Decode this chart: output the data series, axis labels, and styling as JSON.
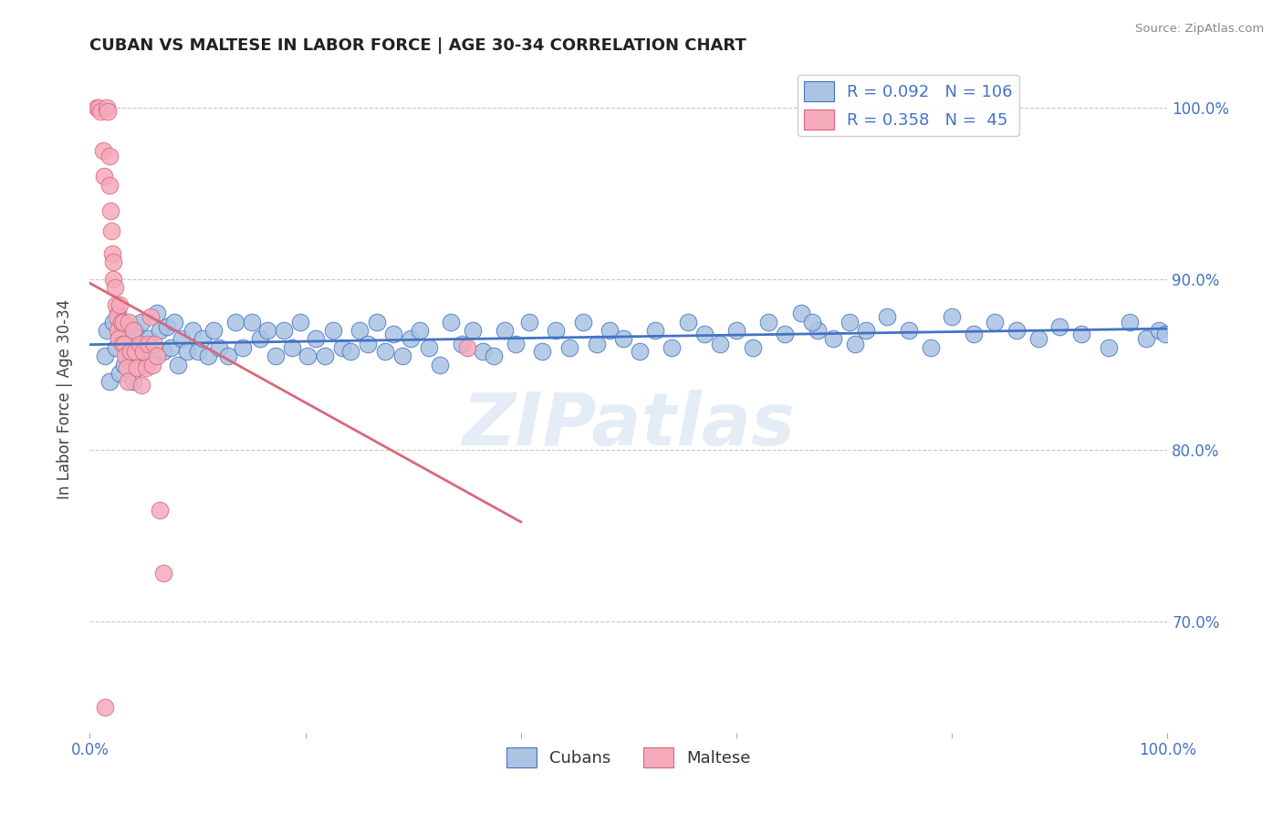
{
  "title": "CUBAN VS MALTESE IN LABOR FORCE | AGE 30-34 CORRELATION CHART",
  "source_text": "Source: ZipAtlas.com",
  "ylabel": "In Labor Force | Age 30-34",
  "xlim": [
    0.0,
    1.0
  ],
  "ylim": [
    0.635,
    1.025
  ],
  "yticks": [
    0.7,
    0.8,
    0.9,
    1.0
  ],
  "ytick_labels": [
    "70.0%",
    "80.0%",
    "90.0%",
    "100.0%"
  ],
  "blue_color": "#aac4e2",
  "pink_color": "#f5aabb",
  "blue_line_color": "#4472c4",
  "pink_line_color": "#d9687a",
  "text_color": "#4472c4",
  "legend_blue_r": "R = 0.092",
  "legend_blue_n": "N = 106",
  "legend_pink_r": "R = 0.358",
  "legend_pink_n": "N =  45",
  "watermark": "ZIPatlas",
  "cubans_x": [
    0.014,
    0.016,
    0.018,
    0.022,
    0.024,
    0.026,
    0.028,
    0.03,
    0.032,
    0.034,
    0.038,
    0.04,
    0.042,
    0.045,
    0.048,
    0.052,
    0.055,
    0.058,
    0.062,
    0.065,
    0.068,
    0.072,
    0.075,
    0.078,
    0.082,
    0.085,
    0.09,
    0.095,
    0.1,
    0.105,
    0.11,
    0.115,
    0.12,
    0.128,
    0.135,
    0.142,
    0.15,
    0.158,
    0.165,
    0.172,
    0.18,
    0.188,
    0.195,
    0.202,
    0.21,
    0.218,
    0.226,
    0.234,
    0.242,
    0.25,
    0.258,
    0.266,
    0.274,
    0.282,
    0.29,
    0.298,
    0.306,
    0.315,
    0.325,
    0.335,
    0.345,
    0.355,
    0.365,
    0.375,
    0.385,
    0.395,
    0.408,
    0.42,
    0.432,
    0.445,
    0.458,
    0.47,
    0.482,
    0.495,
    0.51,
    0.525,
    0.54,
    0.555,
    0.57,
    0.585,
    0.6,
    0.615,
    0.63,
    0.645,
    0.66,
    0.675,
    0.69,
    0.705,
    0.72,
    0.74,
    0.76,
    0.78,
    0.8,
    0.82,
    0.84,
    0.86,
    0.88,
    0.9,
    0.92,
    0.945,
    0.965,
    0.98,
    0.992,
    0.998,
    0.67,
    0.71
  ],
  "cubans_y": [
    0.855,
    0.87,
    0.84,
    0.875,
    0.86,
    0.88,
    0.845,
    0.87,
    0.85,
    0.865,
    0.855,
    0.84,
    0.87,
    0.86,
    0.875,
    0.85,
    0.865,
    0.855,
    0.88,
    0.87,
    0.858,
    0.872,
    0.86,
    0.875,
    0.85,
    0.865,
    0.858,
    0.87,
    0.858,
    0.865,
    0.855,
    0.87,
    0.86,
    0.855,
    0.875,
    0.86,
    0.875,
    0.865,
    0.87,
    0.855,
    0.87,
    0.86,
    0.875,
    0.855,
    0.865,
    0.855,
    0.87,
    0.86,
    0.858,
    0.87,
    0.862,
    0.875,
    0.858,
    0.868,
    0.855,
    0.865,
    0.87,
    0.86,
    0.85,
    0.875,
    0.862,
    0.87,
    0.858,
    0.855,
    0.87,
    0.862,
    0.875,
    0.858,
    0.87,
    0.86,
    0.875,
    0.862,
    0.87,
    0.865,
    0.858,
    0.87,
    0.86,
    0.875,
    0.868,
    0.862,
    0.87,
    0.86,
    0.875,
    0.868,
    0.88,
    0.87,
    0.865,
    0.875,
    0.87,
    0.878,
    0.87,
    0.86,
    0.878,
    0.868,
    0.875,
    0.87,
    0.865,
    0.872,
    0.868,
    0.86,
    0.875,
    0.865,
    0.87,
    0.868,
    0.875,
    0.862
  ],
  "maltese_x": [
    0.006,
    0.008,
    0.01,
    0.012,
    0.013,
    0.014,
    0.016,
    0.017,
    0.018,
    0.018,
    0.019,
    0.02,
    0.021,
    0.022,
    0.022,
    0.023,
    0.024,
    0.025,
    0.026,
    0.027,
    0.028,
    0.029,
    0.03,
    0.031,
    0.032,
    0.033,
    0.034,
    0.035,
    0.036,
    0.038,
    0.04,
    0.042,
    0.044,
    0.046,
    0.048,
    0.05,
    0.052,
    0.054,
    0.056,
    0.058,
    0.06,
    0.062,
    0.065,
    0.068,
    0.35
  ],
  "maltese_y": [
    1.0,
    1.0,
    0.998,
    0.975,
    0.96,
    0.65,
    1.0,
    0.998,
    0.972,
    0.955,
    0.94,
    0.928,
    0.915,
    0.91,
    0.9,
    0.895,
    0.885,
    0.878,
    0.87,
    0.865,
    0.885,
    0.875,
    0.862,
    0.875,
    0.862,
    0.855,
    0.848,
    0.84,
    0.875,
    0.858,
    0.87,
    0.858,
    0.848,
    0.862,
    0.838,
    0.858,
    0.848,
    0.862,
    0.878,
    0.85,
    0.862,
    0.855,
    0.765,
    0.728,
    0.86
  ]
}
